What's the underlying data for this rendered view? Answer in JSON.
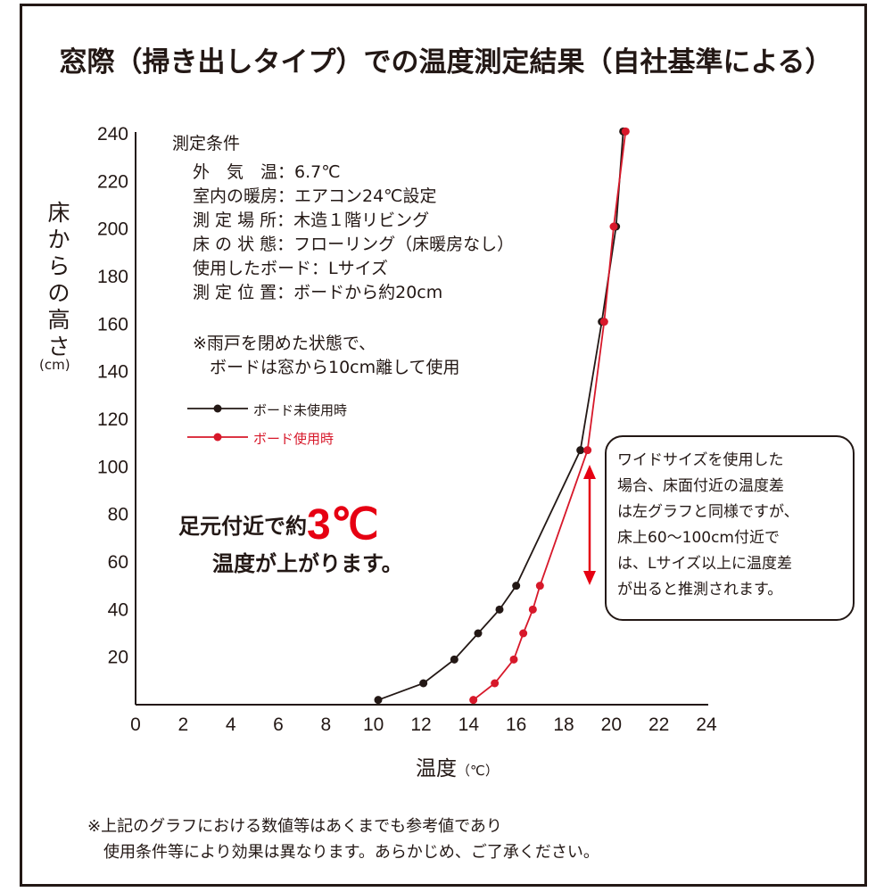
{
  "title": "窓際（掃き出しタイプ）での温度測定結果（自社基準による）",
  "conditions": {
    "heading": "測定条件",
    "lines": [
      "外　気　温：6.7℃",
      "室内の暖房：エアコン24℃設定",
      "測 定 場 所：木造１階リビング",
      "床 の 状 態：フローリング（床暖房なし）",
      "使用したボード：Lサイズ",
      "測 定 位 置：ボードから約20cm"
    ],
    "note": [
      "※雨戸を閉めた状態で、",
      "　ボードは窓から10cm離して使用"
    ]
  },
  "callout": {
    "line1_pre": "足元付近で約",
    "big": "3℃",
    "line2": "温度が上がります。"
  },
  "side_note": [
    "ワイドサイズを使用した",
    "場合、床面付近の温度差",
    "は左グラフと同様ですが、",
    "床上60～100cm付近で",
    "は、Lサイズ以上に温度差",
    "が出ると推測されます。"
  ],
  "footer": [
    "※上記のグラフにおける数値等はあくまでも参考値であり",
    "　使用条件等により効果は異なります。あらかじめ、ご了承ください。"
  ],
  "chart_data": {
    "type": "line",
    "xlabel": "温度",
    "xunit": "（℃）",
    "ylabel": "床からの高さ",
    "yunit": "(cm)",
    "xlim": [
      0,
      24
    ],
    "ylim": [
      0,
      240
    ],
    "xticks": [
      0,
      2,
      4,
      6,
      8,
      10,
      12,
      14,
      16,
      18,
      20,
      22,
      24
    ],
    "yticks": [
      20,
      40,
      60,
      80,
      100,
      120,
      140,
      160,
      180,
      200,
      220,
      240
    ],
    "grid": false,
    "legend_position": "upper-left",
    "series": [
      {
        "name": "ボード未使用時",
        "color": "#231815",
        "points": [
          [
            10.2,
            2
          ],
          [
            12.1,
            9
          ],
          [
            13.4,
            19
          ],
          [
            14.4,
            30
          ],
          [
            15.3,
            40
          ],
          [
            16.0,
            50
          ],
          [
            18.7,
            107
          ],
          [
            19.6,
            161
          ],
          [
            20.2,
            201
          ],
          [
            20.5,
            241
          ]
        ]
      },
      {
        "name": "ボード使用時",
        "color": "#d7182a",
        "points": [
          [
            14.2,
            2
          ],
          [
            15.1,
            9
          ],
          [
            15.9,
            19
          ],
          [
            16.3,
            30
          ],
          [
            16.7,
            40
          ],
          [
            17.0,
            50
          ],
          [
            19.0,
            107
          ],
          [
            19.7,
            161
          ],
          [
            20.1,
            201
          ],
          [
            20.6,
            241
          ]
        ]
      }
    ]
  },
  "colors": {
    "accent": "#e60012",
    "ink": "#231815"
  }
}
